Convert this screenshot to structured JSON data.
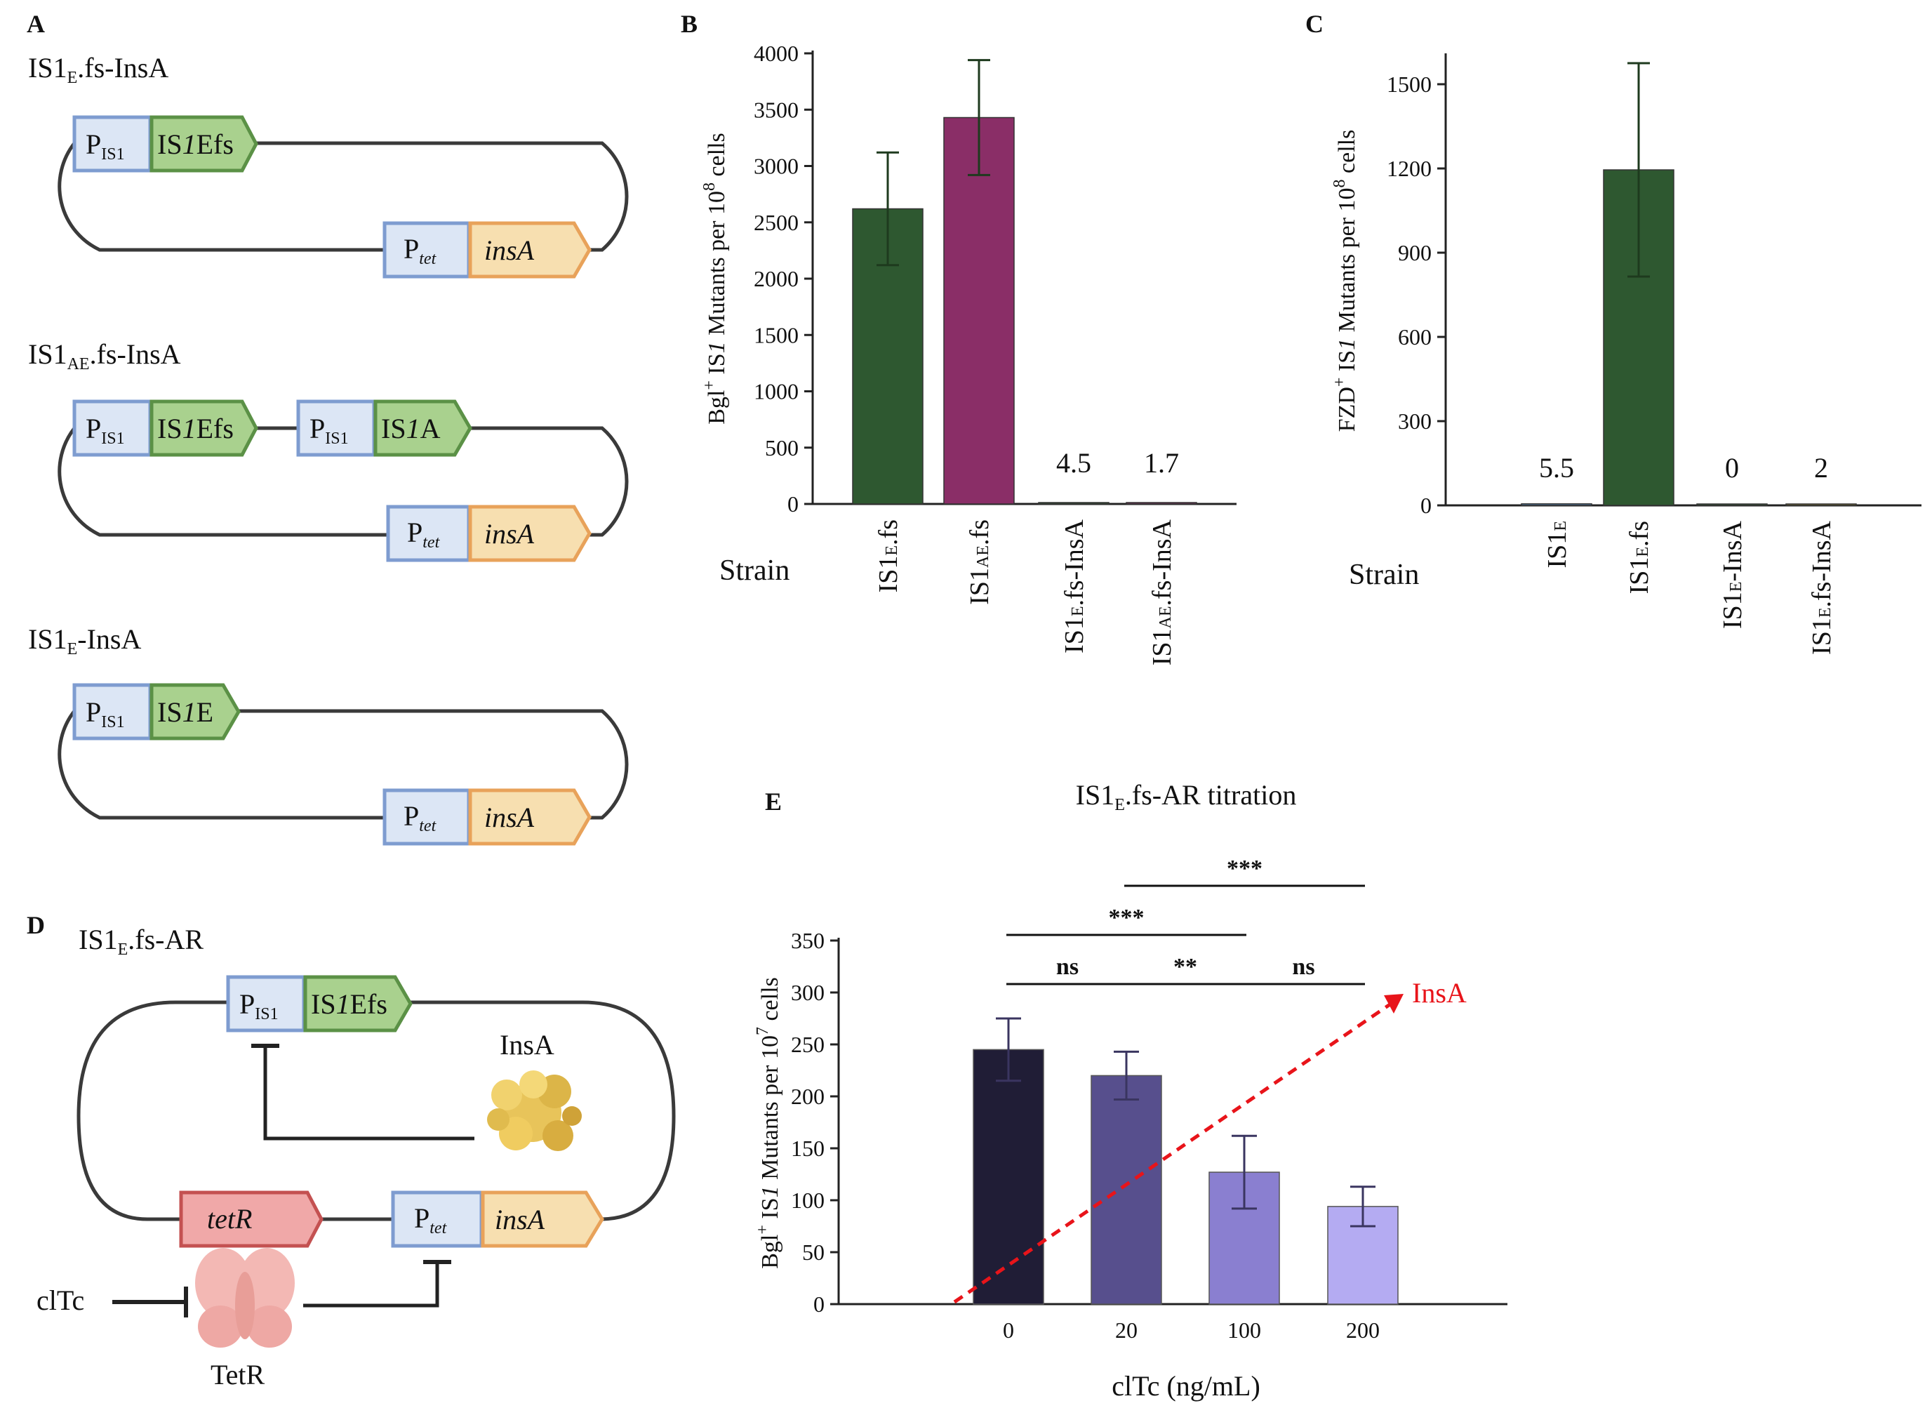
{
  "panel_a": {
    "letter": "A",
    "constructs": [
      {
        "title_pre": "IS1",
        "title_sub": "E",
        "title_post": ".fs-InsA",
        "elements": [
          {
            "main": "P",
            "sub": "IS1"
          },
          {
            "main": "IS",
            "ital": "1",
            "post": "Efs"
          },
          {
            "main": "P",
            "sub": "tet"
          },
          {
            "ital": "insA"
          }
        ]
      },
      {
        "title_pre": "IS1",
        "title_sub": "AE",
        "title_post": ".fs-InsA",
        "elements": [
          {
            "main": "P",
            "sub": "IS1"
          },
          {
            "main": "IS",
            "ital": "1",
            "post": "Efs"
          },
          {
            "main": "P",
            "sub": "IS1"
          },
          {
            "main": "IS",
            "ital": "1",
            "post": "A"
          },
          {
            "main": "P",
            "sub": "tet"
          },
          {
            "ital": "insA"
          }
        ]
      },
      {
        "title_pre": "IS1",
        "title_sub": "E",
        "title_post": "-InsA",
        "elements": [
          {
            "main": "P",
            "sub": "IS1"
          },
          {
            "main": "IS",
            "ital": "1",
            "post": "E"
          },
          {
            "main": "P",
            "sub": "tet"
          },
          {
            "ital": "insA"
          }
        ]
      }
    ]
  },
  "panel_d": {
    "letter": "D",
    "title_pre": "IS1",
    "title_sub": "E",
    "title_post": ".fs-AR",
    "p_main": "P",
    "p_sub": "IS1",
    "is_main": "IS",
    "is_ital": "1",
    "is_post": "Efs",
    "insa_protein": "InsA",
    "tetr_gene": "tetR",
    "ptet_main": "P",
    "ptet_sub": "tet",
    "insa_gene": "insA",
    "cltc": "clTc",
    "tetr_protein": "TetR"
  },
  "colors": {
    "promoter_fill": "#dce6f5",
    "promoter_stroke": "#7e9cd0",
    "is_fill": "#a9d18e",
    "is_stroke": "#5b9146",
    "insa_fill": "#f7dfb0",
    "insa_stroke": "#e8a25a",
    "tetr_fill": "#f0a8a8",
    "tetr_stroke": "#c45151",
    "dark_green": "#2e5830",
    "magenta": "#8a2e67",
    "insa_arrow": "#e8141a"
  },
  "chart_data": [
    {
      "panel": "B",
      "type": "bar",
      "ylabel_pre": "Bgl",
      "ylabel_sup": "+",
      "ylabel_mid": " IS",
      "ylabel_ital": "1",
      "ylabel_post": " Mutants per 10",
      "ylabel_exp": "8",
      "ylabel_end": " cells",
      "xlabel": "Strain",
      "ylim": [
        0,
        4000
      ],
      "yticks": [
        0,
        500,
        1000,
        1500,
        2000,
        2500,
        3000,
        3500,
        4000
      ],
      "categories": [
        {
          "pre": "IS1",
          "sub": "E",
          "post": ".fs"
        },
        {
          "pre": "IS1",
          "sub": "AE",
          "post": ".fs"
        },
        {
          "pre": "IS1",
          "sub": "E",
          "post": ".fs-InsA"
        },
        {
          "pre": "IS1",
          "sub": "AE",
          "post": ".fs-InsA"
        }
      ],
      "values": [
        2620,
        3430,
        4.5,
        1.7
      ],
      "errors": [
        500,
        510,
        0,
        0
      ],
      "colors": [
        "#2e5830",
        "#8a2e67",
        "#2e5830",
        "#8a2e67"
      ],
      "value_labels": [
        "",
        "",
        "4.5",
        "1.7"
      ]
    },
    {
      "panel": "C",
      "type": "bar",
      "ylabel_pre": "FZD",
      "ylabel_sup": "+",
      "ylabel_mid": " IS",
      "ylabel_ital": "1",
      "ylabel_post": " Mutants per 10",
      "ylabel_exp": "8",
      "ylabel_end": " cells",
      "xlabel": "Strain",
      "ylim": [
        0,
        1600
      ],
      "yticks": [
        0,
        300,
        600,
        900,
        1200,
        1500
      ],
      "categories": [
        {
          "pre": "IS1",
          "sub": "E",
          "post": ""
        },
        {
          "pre": "IS1",
          "sub": "E",
          "post": ".fs"
        },
        {
          "pre": "IS1",
          "sub": "E",
          "post": "-InsA"
        },
        {
          "pre": "IS1",
          "sub": "E",
          "post": ".fs-InsA"
        }
      ],
      "values": [
        5.5,
        1195,
        0,
        2
      ],
      "errors": [
        0,
        380,
        0,
        0
      ],
      "colors": [
        "#4f7faf",
        "#2e5830",
        "#2e5830",
        "#8a7a2e"
      ],
      "value_labels": [
        "5.5",
        "",
        "0",
        "2"
      ]
    },
    {
      "panel": "E",
      "type": "bar",
      "title_pre": "IS1",
      "title_sub": "E",
      "title_post": ".fs-AR titration",
      "ylabel_pre": "Bgl",
      "ylabel_sup": "+",
      "ylabel_mid": " IS",
      "ylabel_ital": "1",
      "ylabel_post": " Mutants per 10",
      "ylabel_exp": "7",
      "ylabel_end": " cells",
      "xlabel": "clTc (ng/mL)",
      "ylim": [
        0,
        350
      ],
      "yticks": [
        0,
        50,
        100,
        150,
        200,
        250,
        300,
        350
      ],
      "categories": [
        "0",
        "20",
        "100",
        "200"
      ],
      "values": [
        245,
        220,
        127,
        94
      ],
      "errors": [
        30,
        23,
        35,
        19
      ],
      "colors": [
        "#201d36",
        "#574f8d",
        "#8a7fd0",
        "#b4abf2"
      ],
      "significance": [
        {
          "from": 0,
          "to": 1,
          "label": "ns",
          "level": 0
        },
        {
          "from": 1,
          "to": 2,
          "label": "**",
          "level": 0
        },
        {
          "from": 2,
          "to": 3,
          "label": "ns",
          "level": 0
        },
        {
          "from": 0,
          "to": 2,
          "label": "***",
          "level": 1
        },
        {
          "from": 1,
          "to": 3,
          "label": "***",
          "level": 2
        }
      ],
      "arrow_label": "InsA"
    }
  ]
}
